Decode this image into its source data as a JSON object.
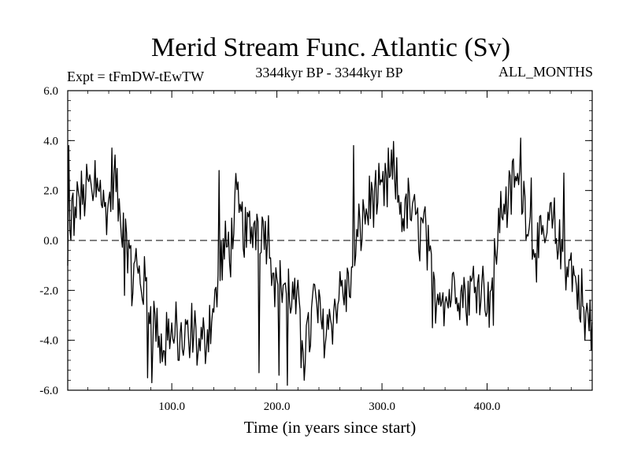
{
  "chart_data": {
    "type": "line",
    "title": "Merid Stream Func. Atlantic (Sv)",
    "subtitle_left": "Expt = tFmDW-tEwTW",
    "subtitle_center": "3344kyr BP - 3344kyr BP",
    "subtitle_right": "ALL_MONTHS",
    "xlabel": "Time (in years since start)",
    "ylabel": "",
    "xlim": [
      1,
      500
    ],
    "ylim": [
      -6.0,
      6.0
    ],
    "x_ticks": [
      100,
      200,
      300,
      400
    ],
    "x_tick_labels": [
      "100.0",
      "200.0",
      "300.0",
      "400.0"
    ],
    "y_ticks": [
      -6,
      -4,
      -2,
      0,
      2,
      4,
      6
    ],
    "y_tick_labels": [
      "-6.0",
      "-4.0",
      "-2.0",
      "0.0",
      "2.0",
      "4.0",
      "6.0"
    ],
    "zero_line": 0.0,
    "series": [
      {
        "name": "Atlantic meridional stream function",
        "x_start": 1,
        "x_step": 5,
        "values": [
          -1.2,
          1.5,
          1.2,
          1.8,
          2.2,
          1.6,
          2.8,
          1.0,
          1.6,
          2.6,
          0.6,
          1.2,
          -2.0,
          -1.0,
          -1.6,
          -2.0,
          -3.0,
          -3.5,
          -4.5,
          -3.2,
          -4.0,
          -3.6,
          -4.2,
          -3.8,
          -3.5,
          -4.4,
          -4.0,
          -3.2,
          -2.6,
          -1.0,
          -0.4,
          -0.2,
          1.4,
          0.8,
          0.2,
          0.4,
          0.8,
          0.5,
          0.4,
          -0.8,
          -2.2,
          -1.6,
          -2.0,
          -2.4,
          -3.0,
          -3.8,
          -3.8,
          -2.2,
          -3.2,
          -3.6,
          -3.0,
          -2.8,
          -1.8,
          -2.2,
          -1.4,
          -0.2,
          0.8,
          1.2,
          1.8,
          1.6,
          1.8,
          2.2,
          2.8,
          1.6,
          1.0,
          1.4,
          0.8,
          0.4,
          0.6,
          -1.4,
          -2.2,
          -1.8,
          -2.4,
          -2.0,
          -1.6,
          -2.2,
          -1.8,
          -2.0,
          -1.4,
          -1.8,
          -2.4,
          -1.2,
          0.6,
          1.6,
          1.6,
          2.6,
          2.0,
          1.6,
          0.6,
          -0.2,
          -0.4,
          0.2,
          0.8,
          0.2,
          -0.6,
          -0.8,
          -1.2,
          -2.0,
          -2.4,
          -3.2
        ],
        "spikes": [
          [
            2,
            3.8
          ],
          [
            7,
            0.2
          ],
          [
            11,
            2.0
          ],
          [
            27,
            3.2
          ],
          [
            43,
            3.7
          ],
          [
            55,
            -2.2
          ],
          [
            61,
            -0.2
          ],
          [
            77,
            -5.5
          ],
          [
            81,
            -5.7
          ],
          [
            94,
            -5.0
          ],
          [
            106,
            -4.8
          ],
          [
            117,
            -4.7
          ],
          [
            145,
            2.8
          ],
          [
            183,
            -5.3
          ],
          [
            202,
            -5.4
          ],
          [
            210,
            -5.8
          ],
          [
            223,
            -5.1
          ],
          [
            226,
            -5.6
          ],
          [
            273,
            3.8
          ],
          [
            306,
            3.7
          ],
          [
            348,
            -3.5
          ],
          [
            381,
            -3.4
          ],
          [
            406,
            -3.4
          ],
          [
            432,
            4.1
          ],
          [
            442,
            2.5
          ],
          [
            473,
            2.7
          ],
          [
            493,
            -4.0
          ],
          [
            499,
            -4.4
          ]
        ]
      }
    ]
  }
}
